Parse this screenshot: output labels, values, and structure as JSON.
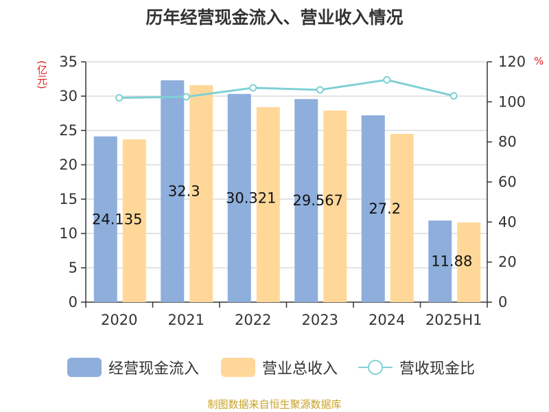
{
  "title": "历年经营现金流入、营业收入情况",
  "unit_left": "(亿元)",
  "unit_right": "%",
  "source": "制图数据来自恒生聚源数据库",
  "colors": {
    "cash_inflow": "#8EAEDC",
    "revenue": "#FFD899",
    "ratio": "#7FD1D5",
    "grid": "#c8c8c8",
    "axis": "#333333",
    "unit": "#e02020"
  },
  "chart_data": {
    "type": "bar",
    "categories": [
      "2020",
      "2021",
      "2022",
      "2023",
      "2024",
      "2025H1"
    ],
    "series": [
      {
        "name": "经营现金流入",
        "axis": "left",
        "values": [
          24.135,
          32.3,
          30.321,
          29.567,
          27.2,
          11.88
        ],
        "data_labels": [
          "24.135",
          "32.3",
          "30.321",
          "29.567",
          "27.2",
          "11.88"
        ]
      },
      {
        "name": "营业总收入",
        "axis": "left",
        "values": [
          23.7,
          31.6,
          28.4,
          27.9,
          24.5,
          11.6
        ]
      },
      {
        "name": "营收现金比",
        "axis": "right",
        "kind": "line",
        "values": [
          102,
          102.5,
          107,
          106,
          111,
          103
        ]
      }
    ],
    "y_left": {
      "min": 0,
      "max": 35,
      "ticks": [
        0,
        5,
        10,
        15,
        20,
        25,
        30,
        35
      ]
    },
    "y_right": {
      "min": 0,
      "max": 120,
      "ticks": [
        0,
        20,
        40,
        60,
        80,
        100,
        120
      ]
    },
    "grid": true,
    "legend_position": "bottom"
  },
  "legend": [
    {
      "label": "经营现金流入",
      "kind": "bar",
      "color": "#8EAEDC"
    },
    {
      "label": "营业总收入",
      "kind": "bar",
      "color": "#FFD899"
    },
    {
      "label": "营收现金比",
      "kind": "line",
      "color": "#7FD1D5"
    }
  ]
}
